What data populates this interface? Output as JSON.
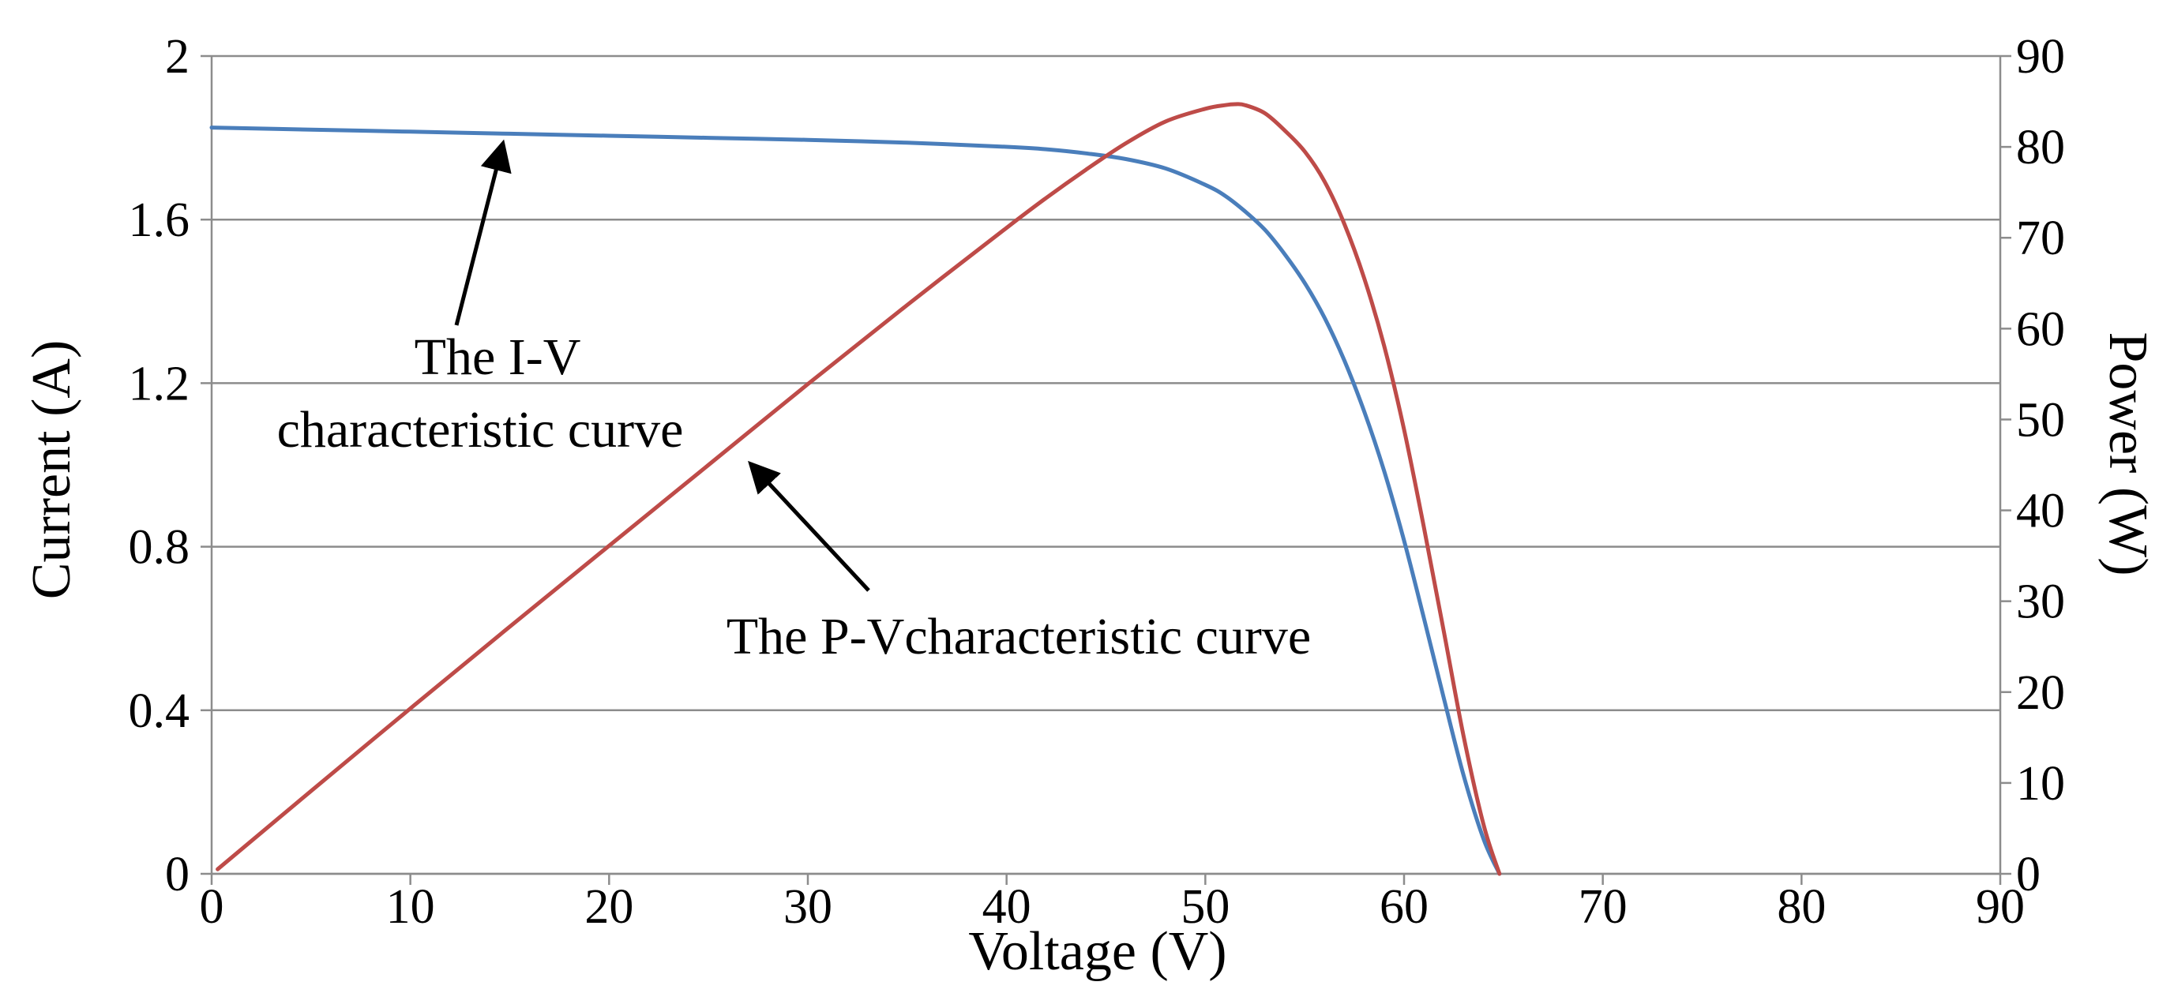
{
  "chart_data": {
    "type": "line",
    "title": "",
    "xlabel": "Voltage (V)",
    "ylabel": "Current (A)",
    "y2label": "Power (W)",
    "xlim": [
      0,
      90
    ],
    "ylim": [
      0,
      2
    ],
    "y2lim": [
      0,
      90
    ],
    "grid": true,
    "x_ticks": [
      "0",
      "10",
      "20",
      "30",
      "40",
      "50",
      "60",
      "70",
      "80",
      "90"
    ],
    "y_ticks": [
      "0",
      "0.4",
      "0.8",
      "1.2",
      "1.6",
      "2"
    ],
    "y2_ticks": [
      "0",
      "10",
      "20",
      "30",
      "40",
      "50",
      "60",
      "70",
      "80",
      "90"
    ],
    "series": [
      {
        "name": "I-V characteristic curve",
        "axis": "left",
        "color": "#4a7ebb",
        "x": [
          0,
          5,
          10,
          15,
          20,
          25,
          30,
          35,
          40,
          42,
          44,
          46,
          48,
          50,
          51,
          52,
          53,
          54,
          55,
          56,
          57,
          58,
          59,
          60,
          61,
          62,
          63,
          64,
          64.8
        ],
        "y": [
          1.825,
          1.82,
          1.815,
          1.81,
          1.805,
          1.8,
          1.795,
          1.788,
          1.778,
          1.772,
          1.762,
          1.748,
          1.725,
          1.685,
          1.658,
          1.62,
          1.575,
          1.515,
          1.445,
          1.36,
          1.255,
          1.13,
          0.985,
          0.815,
          0.625,
          0.43,
          0.24,
          0.085,
          0
        ]
      },
      {
        "name": "P-V characteristic curve",
        "axis": "right",
        "color": "#be4b48",
        "x": [
          0.3,
          5,
          10,
          15,
          20,
          25,
          30,
          35,
          40,
          42,
          44,
          46,
          48,
          50,
          51,
          51.5,
          52,
          53,
          54,
          55,
          56,
          57,
          58,
          59,
          60,
          61,
          62,
          63,
          64,
          64.8
        ],
        "y": [
          0.5,
          9.1,
          18.2,
          27.2,
          36.1,
          45.0,
          53.9,
          62.6,
          71.1,
          74.4,
          77.5,
          80.4,
          82.8,
          84.2,
          84.6,
          84.7,
          84.6,
          83.7,
          81.8,
          79.5,
          76.2,
          71.5,
          65.5,
          58.1,
          48.9,
          38.1,
          26.7,
          15.1,
          5.4,
          0
        ]
      }
    ],
    "annotations": [
      {
        "text_lines": [
          "The I-V",
          "characteristic curve"
        ],
        "points_to": "I-V characteristic curve",
        "target_x": 14.5,
        "target_y": 1.81
      },
      {
        "text_lines": [
          "The P-Vcharacteristic curve"
        ],
        "points_to": "P-V characteristic curve",
        "target_x": 26.8,
        "target_y_power": 46
      }
    ]
  }
}
